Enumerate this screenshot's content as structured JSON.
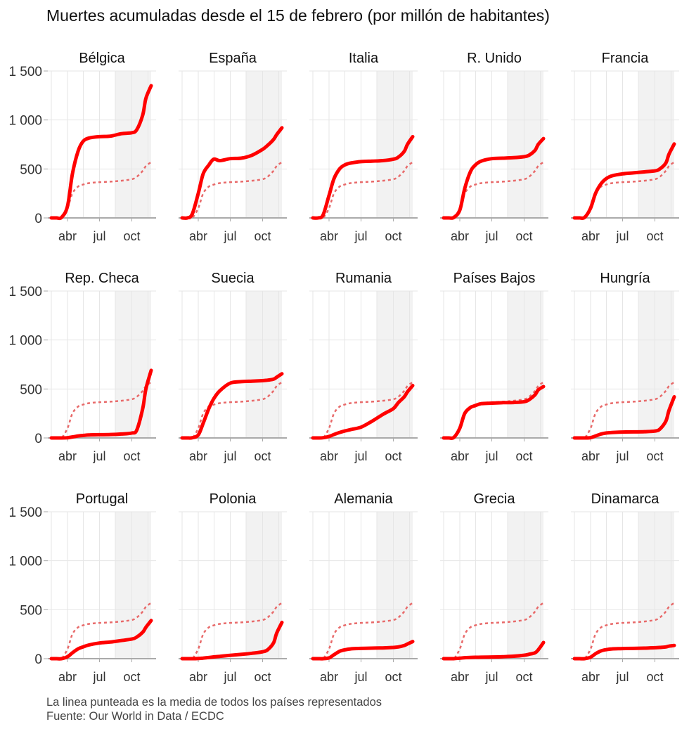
{
  "title": "Muertes acumuladas desde el 15 de febrero (por millón de habitantes)",
  "footer": {
    "note": "La linea punteada es la media de todos los países representados",
    "source": "Fuente: Our World in Data / ECDC"
  },
  "colors": {
    "country": "#ff0000",
    "mean": "#e86a6a",
    "shade": "#f2f2f2",
    "grid": "#e6e6e6",
    "baseline": "#aaaaaa"
  },
  "chart_data": {
    "type": "line",
    "layout": "small-multiples 3x5",
    "ylim": [
      0,
      1500
    ],
    "yticks": [
      0,
      500,
      1000,
      1500
    ],
    "ytick_labels": [
      "0",
      "500",
      "1 000",
      "1 500"
    ],
    "xticks": [
      "2020-04-01",
      "2020-07-01",
      "2020-10-01"
    ],
    "xtick_labels": [
      "abr",
      "jul",
      "oct"
    ],
    "shaded_period": [
      "2020-08-15",
      "2020-11-25"
    ],
    "grid": true,
    "x": [
      "2020-02-15",
      "2020-03-01",
      "2020-03-15",
      "2020-04-01",
      "2020-04-15",
      "2020-05-01",
      "2020-05-15",
      "2020-06-01",
      "2020-07-01",
      "2020-08-01",
      "2020-09-01",
      "2020-10-01",
      "2020-10-15",
      "2020-11-01",
      "2020-11-10",
      "2020-11-25"
    ],
    "mean": [
      0,
      0,
      0,
      100,
      250,
      320,
      340,
      355,
      365,
      370,
      380,
      395,
      420,
      480,
      530,
      570
    ],
    "panels": [
      {
        "name": "Bélgica",
        "values": [
          0,
          0,
          5,
          120,
          450,
          680,
          780,
          815,
          830,
          835,
          860,
          870,
          900,
          1050,
          1220,
          1350
        ]
      },
      {
        "name": "España",
        "values": [
          0,
          0,
          40,
          250,
          450,
          540,
          600,
          585,
          605,
          610,
          640,
          700,
          740,
          800,
          850,
          920
        ]
      },
      {
        "name": "Italia",
        "values": [
          0,
          0,
          30,
          230,
          400,
          500,
          540,
          560,
          575,
          580,
          585,
          600,
          620,
          680,
          750,
          830
        ]
      },
      {
        "name": "R. Unido",
        "values": [
          0,
          0,
          5,
          80,
          300,
          470,
          540,
          580,
          605,
          610,
          615,
          625,
          640,
          690,
          750,
          810
        ]
      },
      {
        "name": "Francia",
        "values": [
          0,
          0,
          5,
          100,
          250,
          350,
          400,
          430,
          450,
          460,
          470,
          480,
          500,
          560,
          650,
          755
        ]
      },
      {
        "name": "Rep. Checa",
        "values": [
          0,
          0,
          0,
          2,
          10,
          20,
          25,
          30,
          33,
          35,
          40,
          50,
          80,
          300,
          500,
          690
        ]
      },
      {
        "name": "Suecia",
        "values": [
          0,
          0,
          2,
          30,
          150,
          300,
          400,
          480,
          560,
          575,
          580,
          585,
          590,
          600,
          620,
          655
        ]
      },
      {
        "name": "Rumania",
        "values": [
          0,
          0,
          2,
          15,
          35,
          55,
          70,
          85,
          110,
          170,
          240,
          300,
          360,
          420,
          470,
          535
        ]
      },
      {
        "name": "Países Bajos",
        "values": [
          0,
          0,
          5,
          100,
          250,
          310,
          330,
          350,
          355,
          360,
          362,
          370,
          390,
          440,
          490,
          525
        ]
      },
      {
        "name": "Hungría",
        "values": [
          0,
          0,
          0,
          3,
          20,
          40,
          50,
          55,
          60,
          62,
          64,
          70,
          90,
          170,
          280,
          420
        ]
      },
      {
        "name": "Portugal",
        "values": [
          0,
          0,
          0,
          20,
          60,
          100,
          120,
          140,
          160,
          170,
          185,
          200,
          220,
          270,
          320,
          390
        ]
      },
      {
        "name": "Polonia",
        "values": [
          0,
          0,
          0,
          2,
          6,
          12,
          18,
          24,
          34,
          44,
          55,
          70,
          90,
          160,
          260,
          370
        ]
      },
      {
        "name": "Alemania",
        "values": [
          0,
          0,
          0,
          8,
          40,
          75,
          90,
          100,
          105,
          108,
          110,
          115,
          120,
          135,
          150,
          175
        ]
      },
      {
        "name": "Grecia",
        "values": [
          0,
          0,
          0,
          5,
          10,
          12,
          14,
          15,
          17,
          20,
          25,
          35,
          45,
          60,
          90,
          165
        ]
      },
      {
        "name": "Dinamarca",
        "values": [
          0,
          0,
          0,
          15,
          50,
          80,
          92,
          100,
          103,
          105,
          108,
          112,
          115,
          120,
          128,
          135
        ]
      }
    ]
  }
}
